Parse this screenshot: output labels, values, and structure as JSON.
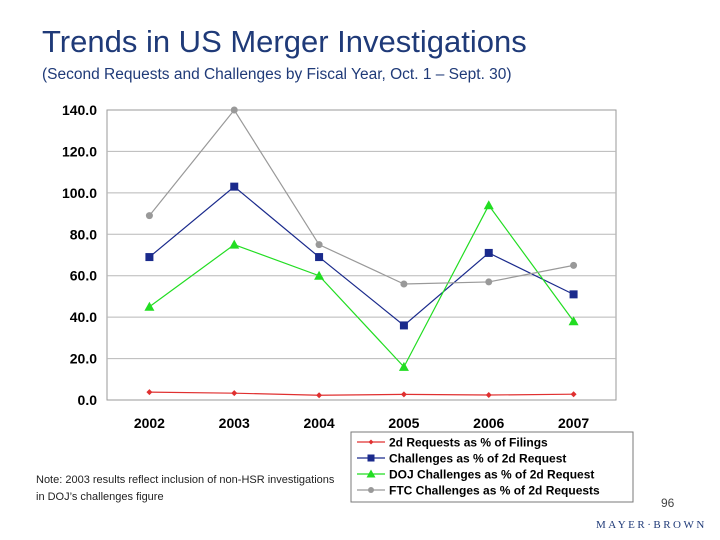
{
  "slide": {
    "title": "Trends in US Merger Investigations",
    "subtitle": "(Second Requests and Challenges by Fiscal Year, Oct. 1 – Sept. 30)",
    "note": "Note:  2003 results reflect inclusion of non-HSR investigations in DOJ’s challenges figure",
    "page_number": "96",
    "brand": "MAYER·BROWN"
  },
  "chart_data": {
    "type": "line",
    "title": "",
    "xlabel": "",
    "ylabel": "",
    "categories": [
      "2002",
      "2003",
      "2004",
      "2005",
      "2006",
      "2007"
    ],
    "ylim": [
      0,
      140
    ],
    "yticks": [
      "0.0",
      "20.0",
      "40.0",
      "60.0",
      "80.0",
      "100.0",
      "120.0",
      "140.0"
    ],
    "grid": true,
    "legend": "bottom-right",
    "series": [
      {
        "name": "2d Requests as % of Filings",
        "values": [
          3.8,
          3.3,
          2.3,
          2.7,
          2.4,
          2.8
        ],
        "color": "#e03030",
        "marker": "diamond"
      },
      {
        "name": "Challenges as % of 2d Request",
        "values": [
          69,
          103,
          69,
          36,
          71,
          51
        ],
        "color": "#1a2a8c",
        "marker": "square"
      },
      {
        "name": "DOJ Challenges as % of 2d Request",
        "values": [
          45,
          75,
          60,
          16,
          94,
          38
        ],
        "color": "#22dd22",
        "marker": "triangle"
      },
      {
        "name": "FTC Challenges as % of 2d Requests",
        "values": [
          89,
          140,
          75,
          56,
          57,
          65
        ],
        "color": "#999999",
        "marker": "circle"
      }
    ]
  }
}
